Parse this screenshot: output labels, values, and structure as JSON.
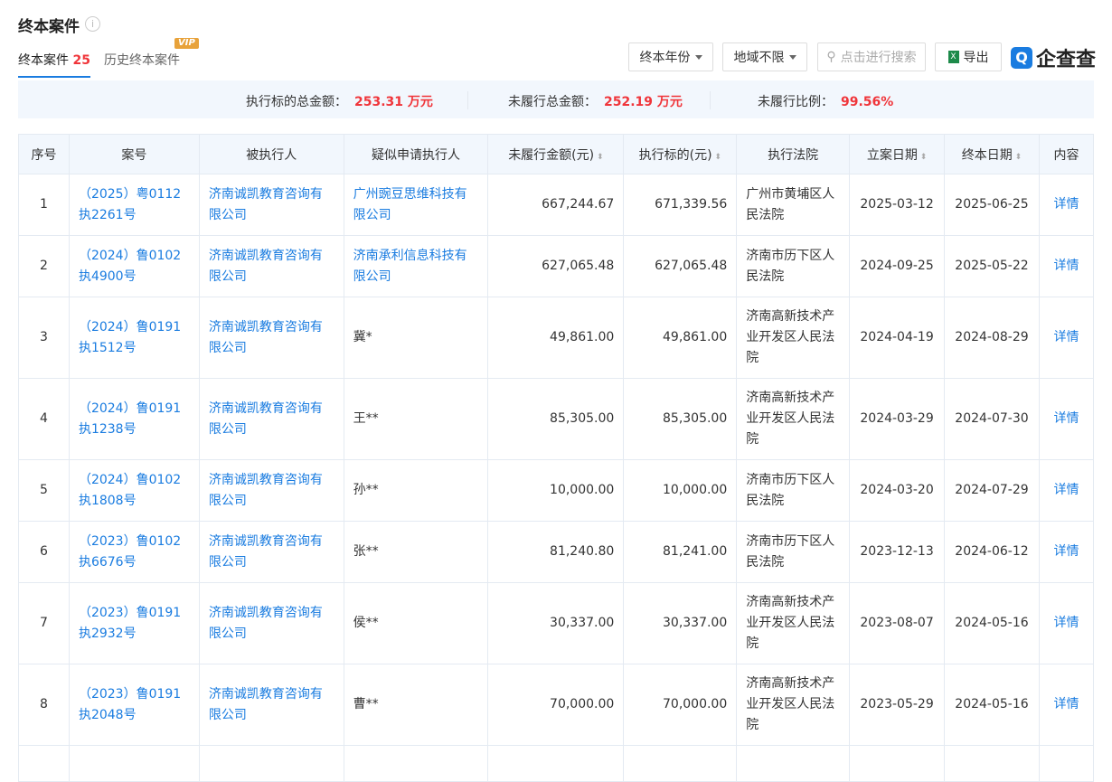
{
  "header": {
    "title": "终本案件",
    "info_icon": "info-icon"
  },
  "tabs": [
    {
      "label": "终本案件",
      "count": "25"
    },
    {
      "label": "历史终本案件",
      "badge": "VIP"
    }
  ],
  "toolbar": {
    "year_filter": "终本年份",
    "region_filter": "地域不限",
    "search_placeholder": "点击进行搜索",
    "export": "导出",
    "logo": "企查查"
  },
  "summary": {
    "total_label": "执行标的总金额：",
    "total_value": "253.31 万元",
    "unpaid_label": "未履行总金额：",
    "unpaid_value": "252.19 万元",
    "ratio_label": "未履行比例：",
    "ratio_value": "99.56%"
  },
  "table": {
    "columns": [
      "序号",
      "案号",
      "被执行人",
      "疑似申请执行人",
      "未履行金额(元)",
      "执行标的(元)",
      "执行法院",
      "立案日期",
      "终本日期",
      "内容"
    ],
    "rows": [
      {
        "no": "1",
        "case": "（2025）粤0112执2261号",
        "debtor": "济南诚凯教育咨询有限公司",
        "applicant": "广州豌豆思维科技有限公司",
        "applicant_link": true,
        "unpaid": "667,244.67",
        "target": "671,339.56",
        "court": "广州市黄埔区人民法院",
        "filed": "2025-03-12",
        "closed": "2025-06-25",
        "detail": "详情"
      },
      {
        "no": "2",
        "case": "（2024）鲁0102执4900号",
        "debtor": "济南诚凯教育咨询有限公司",
        "applicant": "济南承利信息科技有限公司",
        "applicant_link": true,
        "unpaid": "627,065.48",
        "target": "627,065.48",
        "court": "济南市历下区人民法院",
        "filed": "2024-09-25",
        "closed": "2025-05-22",
        "detail": "详情"
      },
      {
        "no": "3",
        "case": "（2024）鲁0191执1512号",
        "debtor": "济南诚凯教育咨询有限公司",
        "applicant": "冀*",
        "applicant_link": false,
        "unpaid": "49,861.00",
        "target": "49,861.00",
        "court": "济南高新技术产业开发区人民法院",
        "filed": "2024-04-19",
        "closed": "2024-08-29",
        "detail": "详情"
      },
      {
        "no": "4",
        "case": "（2024）鲁0191执1238号",
        "debtor": "济南诚凯教育咨询有限公司",
        "applicant": "王**",
        "applicant_link": false,
        "unpaid": "85,305.00",
        "target": "85,305.00",
        "court": "济南高新技术产业开发区人民法院",
        "filed": "2024-03-29",
        "closed": "2024-07-30",
        "detail": "详情"
      },
      {
        "no": "5",
        "case": "（2024）鲁0102执1808号",
        "debtor": "济南诚凯教育咨询有限公司",
        "applicant": "孙**",
        "applicant_link": false,
        "unpaid": "10,000.00",
        "target": "10,000.00",
        "court": "济南市历下区人民法院",
        "filed": "2024-03-20",
        "closed": "2024-07-29",
        "detail": "详情"
      },
      {
        "no": "6",
        "case": "（2023）鲁0102执6676号",
        "debtor": "济南诚凯教育咨询有限公司",
        "applicant": "张**",
        "applicant_link": false,
        "unpaid": "81,240.80",
        "target": "81,241.00",
        "court": "济南市历下区人民法院",
        "filed": "2023-12-13",
        "closed": "2024-06-12",
        "detail": "详情"
      },
      {
        "no": "7",
        "case": "（2023）鲁0191执2932号",
        "debtor": "济南诚凯教育咨询有限公司",
        "applicant": "侯**",
        "applicant_link": false,
        "unpaid": "30,337.00",
        "target": "30,337.00",
        "court": "济南高新技术产业开发区人民法院",
        "filed": "2023-08-07",
        "closed": "2024-05-16",
        "detail": "详情"
      },
      {
        "no": "8",
        "case": "（2023）鲁0191执2048号",
        "debtor": "济南诚凯教育咨询有限公司",
        "applicant": "曹**",
        "applicant_link": false,
        "unpaid": "70,000.00",
        "target": "70,000.00",
        "court": "济南高新技术产业开发区人民法院",
        "filed": "2023-05-29",
        "closed": "2024-05-16",
        "detail": "详情"
      }
    ]
  },
  "colors": {
    "accent": "#1a7ce0",
    "highlight": "#f0353a",
    "header_bg": "#f2f7fd"
  }
}
